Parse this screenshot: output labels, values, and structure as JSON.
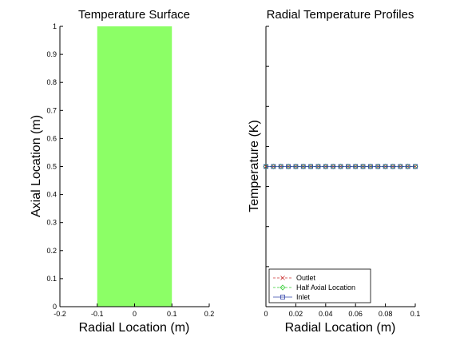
{
  "chart_data": [
    {
      "type": "heatmap",
      "title": "Temperature Surface",
      "xlabel": "Radial Location (m)",
      "ylabel": "Axial Location (m)",
      "xlim": [
        -0.2,
        0.2
      ],
      "ylim": [
        0,
        1
      ],
      "xticks": [
        "-0.2",
        "-0.1",
        "0",
        "0.1",
        "0.2"
      ],
      "yticks": [
        "0",
        "0.1",
        "0.2",
        "0.3",
        "0.4",
        "0.5",
        "0.6",
        "0.7",
        "0.8",
        "0.9",
        "1"
      ],
      "surface": {
        "x_range": [
          -0.1,
          0.1
        ],
        "y_range": [
          0,
          1
        ],
        "color": "#8cff66"
      },
      "grid": false
    },
    {
      "type": "line",
      "title": "Radial Temperature Profiles",
      "xlabel": "Radial Location (m)",
      "ylabel": "Temperature (K)",
      "xlim": [
        0,
        0.1
      ],
      "xticks": [
        "0",
        "0.02",
        "0.04",
        "0.06",
        "0.08",
        "0.1"
      ],
      "x": [
        0,
        0.005,
        0.01,
        0.015,
        0.02,
        0.025,
        0.03,
        0.035,
        0.04,
        0.045,
        0.05,
        0.055,
        0.06,
        0.065,
        0.07,
        0.075,
        0.08,
        0.085,
        0.09,
        0.095,
        0.1
      ],
      "series": [
        {
          "name": "Outlet",
          "color": "#cc3333",
          "marker": "x",
          "values": [
            0.5,
            0.5,
            0.5,
            0.5,
            0.5,
            0.5,
            0.5,
            0.5,
            0.5,
            0.5,
            0.5,
            0.5,
            0.5,
            0.5,
            0.5,
            0.5,
            0.5,
            0.5,
            0.5,
            0.5,
            0.5
          ]
        },
        {
          "name": "Half Axial Location",
          "color": "#33cc33",
          "marker": "diamond",
          "values": [
            0.5,
            0.5,
            0.5,
            0.5,
            0.5,
            0.5,
            0.5,
            0.5,
            0.5,
            0.5,
            0.5,
            0.5,
            0.5,
            0.5,
            0.5,
            0.5,
            0.5,
            0.5,
            0.5,
            0.5,
            0.5
          ]
        },
        {
          "name": "Inlet",
          "color": "#3344aa",
          "marker": "square",
          "values": [
            0.5,
            0.5,
            0.5,
            0.5,
            0.5,
            0.5,
            0.5,
            0.5,
            0.5,
            0.5,
            0.5,
            0.5,
            0.5,
            0.5,
            0.5,
            0.5,
            0.5,
            0.5,
            0.5,
            0.5,
            0.5
          ]
        }
      ],
      "legend": "bottom-left",
      "grid": false
    }
  ]
}
